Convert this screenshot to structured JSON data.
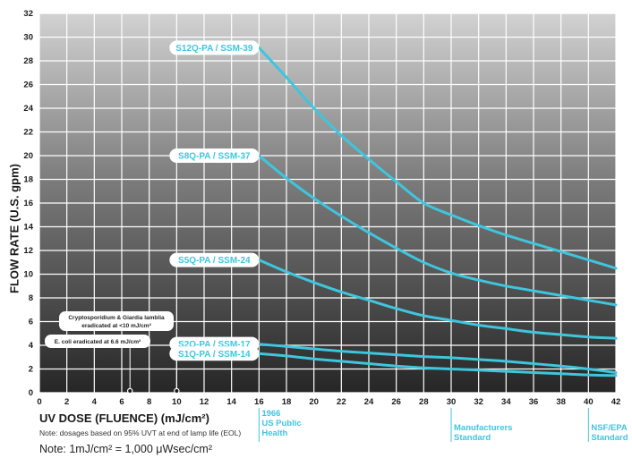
{
  "chart_data": {
    "type": "line",
    "xlabel": "UV DOSE (FLUENCE) (mJ/cm²)",
    "ylabel": "FLOW RATE (U.S. gpm)",
    "xlim": [
      0,
      42
    ],
    "ylim": [
      0,
      32
    ],
    "x_ticks": [
      "0",
      "2",
      "4",
      "6",
      "8",
      "10",
      "12",
      "14",
      "16",
      "18",
      "20",
      "22",
      "24",
      "26",
      "28",
      "30",
      "32",
      "34",
      "36",
      "38",
      "40",
      "42"
    ],
    "y_ticks": [
      "0",
      "2",
      "4",
      "6",
      "8",
      "10",
      "12",
      "14",
      "16",
      "18",
      "20",
      "22",
      "24",
      "26",
      "28",
      "30",
      "32"
    ],
    "grid": true,
    "series": [
      {
        "name": "S12Q-PA / SSM-39",
        "x": [
          16,
          18,
          20,
          22,
          24,
          26,
          28,
          30,
          32,
          34,
          36,
          38,
          40,
          42
        ],
        "y": [
          29.1,
          26.6,
          24.0,
          21.7,
          19.7,
          17.8,
          16.0,
          15.0,
          14.1,
          13.3,
          12.6,
          11.9,
          11.2,
          10.5
        ]
      },
      {
        "name": "S8Q-PA / SSM-37",
        "x": [
          16,
          18,
          20,
          22,
          24,
          26,
          28,
          30,
          32,
          34,
          36,
          38,
          40,
          42
        ],
        "y": [
          20.0,
          18.1,
          16.4,
          14.9,
          13.5,
          12.2,
          11.0,
          10.1,
          9.5,
          9.0,
          8.6,
          8.2,
          7.8,
          7.4
        ]
      },
      {
        "name": "S5Q-PA / SSM-24",
        "x": [
          16,
          18,
          20,
          22,
          24,
          26,
          28,
          30,
          32,
          34,
          36,
          38,
          40,
          42
        ],
        "y": [
          11.2,
          10.2,
          9.3,
          8.5,
          7.8,
          7.1,
          6.5,
          6.1,
          5.7,
          5.4,
          5.1,
          4.9,
          4.7,
          4.6
        ]
      },
      {
        "name": "S2Q-PA / SSM-17",
        "x": [
          16,
          18,
          20,
          22,
          24,
          26,
          28,
          30,
          32,
          34,
          36,
          38,
          40,
          42
        ],
        "y": [
          4.1,
          3.9,
          3.7,
          3.5,
          3.35,
          3.2,
          3.05,
          2.95,
          2.8,
          2.65,
          2.45,
          2.25,
          2.0,
          1.7
        ]
      },
      {
        "name": "S1Q-PA / SSM-14",
        "x": [
          16,
          18,
          20,
          22,
          24,
          26,
          28,
          30,
          32,
          34,
          36,
          38,
          40,
          42
        ],
        "y": [
          3.3,
          3.1,
          2.85,
          2.65,
          2.45,
          2.25,
          2.1,
          2.0,
          1.9,
          1.8,
          1.7,
          1.6,
          1.5,
          1.45
        ]
      }
    ],
    "annotations": [
      {
        "text": "Cryptosporidium & Giardia lamblia\neradicated at <10 mJ/cm²",
        "x": 10
      },
      {
        "text": "E. coli eradicated at 6.6 mJ/cm²",
        "x": 6.6
      }
    ],
    "standards": [
      {
        "text": "1966\nUS Public\nHealth",
        "x": 16
      },
      {
        "text": "Manufacturers\nStandard",
        "x": 30
      },
      {
        "text": "NSF/EPA\nStandard",
        "x": 40
      }
    ]
  },
  "labels": {
    "ylabel": "FLOW RATE (U.S. gpm)",
    "xlabel": "UV DOSE (FLUENCE) (mJ/cm²)",
    "dose_note": "Note: dosages based on 95% UVT at end of lamp life (EOL)",
    "unit_note": "Note: 1mJ/cm² = 1,000 μWsec/cm²"
  },
  "colors": {
    "line": "#3ec6de",
    "grid": "#ffffff",
    "gradient_top": "#d2d2d2",
    "gradient_bottom": "#262626",
    "label_text": "#3ec6de",
    "axis_text": "#1a1a1a"
  }
}
